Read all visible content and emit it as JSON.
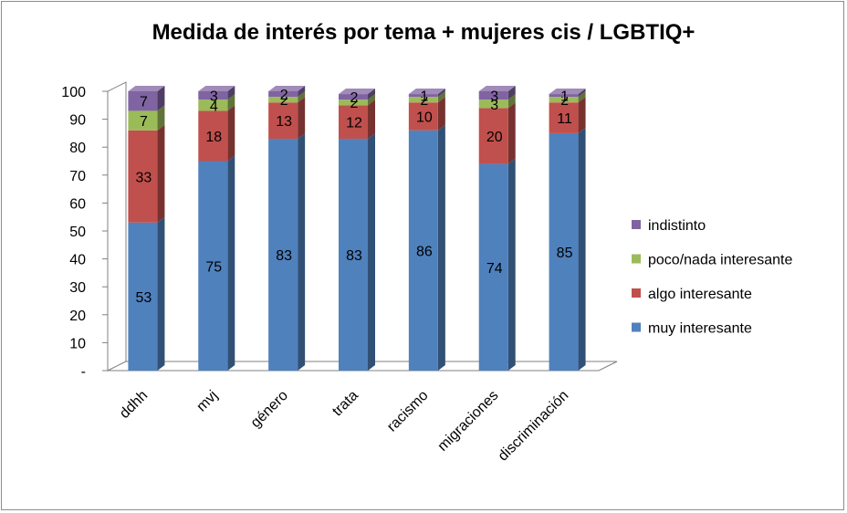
{
  "chart_data": {
    "type": "bar",
    "stacked": true,
    "three_d": true,
    "title": "Medida de interés por tema + mujeres cis / LGBTIQ+",
    "categories": [
      "ddhh",
      "mvj",
      "género",
      "trata",
      "racismo",
      "migraciones",
      "discriminación"
    ],
    "series": [
      {
        "name": "muy interesante",
        "color": "#4F81BD",
        "values": [
          53,
          75,
          83,
          83,
          86,
          74,
          85
        ]
      },
      {
        "name": "algo interesante",
        "color": "#C0504D",
        "values": [
          33,
          18,
          13,
          12,
          10,
          20,
          11
        ]
      },
      {
        "name": "poco/nada interesante",
        "color": "#9BBB59",
        "values": [
          7,
          4,
          2,
          2,
          2,
          3,
          2
        ]
      },
      {
        "name": "indistinto",
        "color": "#8064A2",
        "values": [
          7,
          3,
          2,
          2,
          1,
          3,
          1
        ]
      }
    ],
    "y_ticks": [
      "-",
      "10",
      "20",
      "30",
      "40",
      "50",
      "60",
      "70",
      "80",
      "90",
      "100"
    ],
    "ylim": [
      0,
      100
    ],
    "grid": false,
    "legend_position": "right"
  }
}
